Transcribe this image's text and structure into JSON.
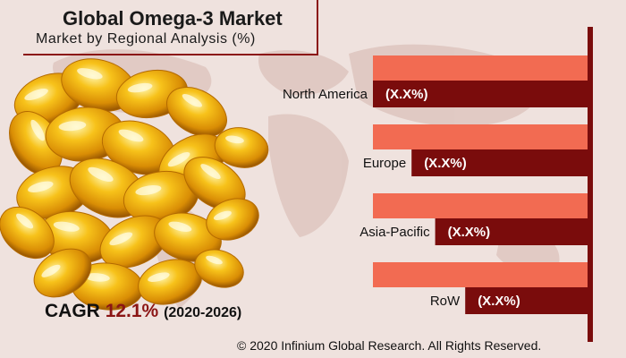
{
  "header": {
    "title": "Global Omega-3 Market",
    "subtitle": "Market by Regional Analysis (%)"
  },
  "cagr": {
    "label": "CAGR",
    "value": "12.1%",
    "period": "(2020-2026)"
  },
  "footer": {
    "copyright": "© 2020 Infinium Global Research. All Rights Reserved."
  },
  "colors": {
    "background": "#efe2de",
    "bar_light": "#f26b52",
    "bar_dark": "#7a0c0c",
    "accent": "#8b1515"
  },
  "chart_data": {
    "type": "bar",
    "orientation": "horizontal",
    "categories": [
      "North America",
      "Europe",
      "Asia-Pacific",
      "RoW"
    ],
    "series": [
      {
        "values": [
          100,
          100,
          100,
          100
        ]
      },
      {
        "values": [
          100,
          82,
          71,
          57
        ]
      }
    ],
    "data_labels": [
      "(X.X%)",
      "(X.X%)",
      "(X.X%)",
      "(X.X%)"
    ],
    "xlim": [
      0,
      100
    ]
  }
}
